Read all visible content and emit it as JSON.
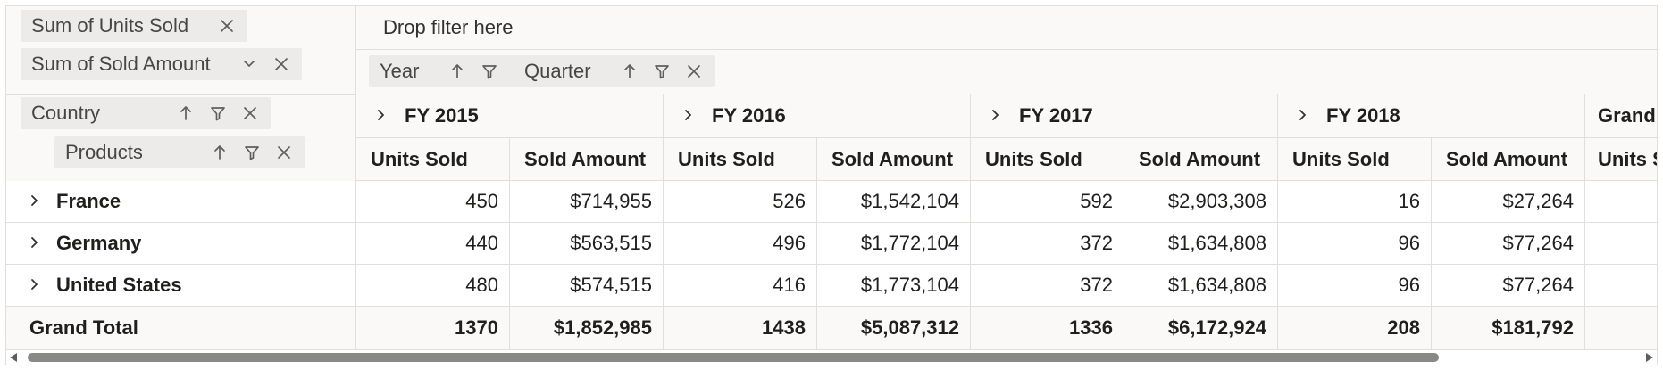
{
  "values_panel": {
    "items": [
      {
        "label": "Sum of Units Sold"
      },
      {
        "label": "Sum of Sold Amount"
      }
    ]
  },
  "filter_area": {
    "placeholder": "Drop filter here"
  },
  "columns_area": {
    "items": [
      {
        "label": "Year"
      },
      {
        "label": "Quarter"
      }
    ]
  },
  "rows_area": {
    "items": [
      {
        "label": "Country"
      },
      {
        "label": "Products"
      }
    ]
  },
  "grid": {
    "years": [
      "FY 2015",
      "FY 2016",
      "FY 2017",
      "FY 2018"
    ],
    "grand_header": "Grand",
    "measure_headers": [
      "Units Sold",
      "Sold Amount"
    ],
    "grand_measure_partial": "Units S",
    "rows": [
      {
        "label": "France",
        "values": [
          "450",
          "$714,955",
          "526",
          "$1,542,104",
          "592",
          "$2,903,308",
          "16",
          "$27,264"
        ]
      },
      {
        "label": "Germany",
        "values": [
          "440",
          "$563,515",
          "496",
          "$1,772,104",
          "372",
          "$1,634,808",
          "96",
          "$77,264"
        ]
      },
      {
        "label": "United States",
        "values": [
          "480",
          "$574,515",
          "416",
          "$1,773,104",
          "372",
          "$1,634,808",
          "96",
          "$77,264"
        ]
      }
    ],
    "grand_total": {
      "label": "Grand Total",
      "values": [
        "1370",
        "$1,852,985",
        "1438",
        "$5,087,312",
        "1336",
        "$6,172,924",
        "208",
        "$181,792"
      ]
    }
  }
}
